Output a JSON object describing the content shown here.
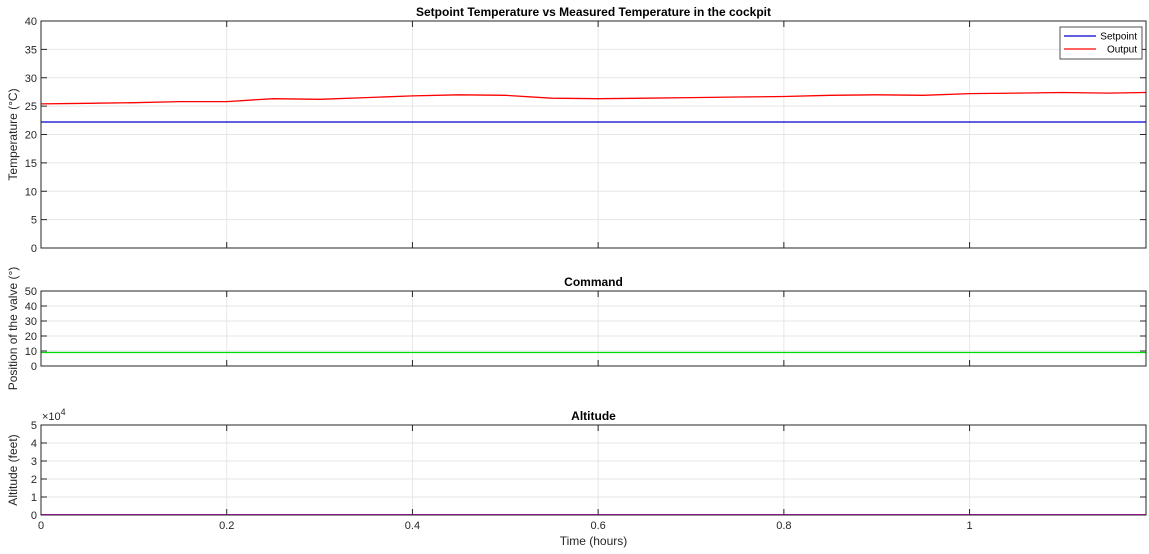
{
  "chart_data": [
    {
      "type": "line",
      "title": "Setpoint Temperature vs Measured Temperature in the cockpit",
      "xlabel": "",
      "ylabel": "Temperature (°C)",
      "xlim": [
        0,
        1.19
      ],
      "ylim": [
        0,
        40
      ],
      "x_ticks": [
        0,
        0.2,
        0.4,
        0.6,
        0.8,
        1
      ],
      "x_tick_labels": [
        "",
        "",
        "",
        "",
        "",
        ""
      ],
      "y_ticks": [
        0,
        5,
        10,
        15,
        20,
        25,
        30,
        35,
        40
      ],
      "y_tick_labels": [
        "0",
        "5",
        "10",
        "15",
        "20",
        "25",
        "30",
        "35",
        "40"
      ],
      "grid": true,
      "legend_position": "top-right",
      "series": [
        {
          "name": "Setpoint",
          "color": "#0000cc",
          "x": [
            0,
            1.19
          ],
          "y": [
            22.2,
            22.2
          ]
        },
        {
          "name": "Output",
          "color": "#ff0000",
          "x": [
            0,
            0.05,
            0.1,
            0.15,
            0.2,
            0.25,
            0.3,
            0.35,
            0.4,
            0.45,
            0.5,
            0.55,
            0.6,
            0.65,
            0.7,
            0.75,
            0.8,
            0.85,
            0.9,
            0.95,
            1.0,
            1.05,
            1.1,
            1.15,
            1.19
          ],
          "y": [
            25.4,
            25.5,
            25.6,
            25.8,
            25.8,
            26.3,
            26.2,
            26.5,
            26.8,
            27.0,
            26.9,
            26.4,
            26.3,
            26.4,
            26.5,
            26.6,
            26.7,
            26.9,
            27.0,
            26.9,
            27.2,
            27.3,
            27.4,
            27.3,
            27.4
          ]
        }
      ]
    },
    {
      "type": "line",
      "title": "Command",
      "xlabel": "",
      "ylabel": "Position of the valve (°)",
      "xlim": [
        0,
        1.19
      ],
      "ylim": [
        0,
        50
      ],
      "x_ticks": [
        0,
        0.2,
        0.4,
        0.6,
        0.8,
        1
      ],
      "x_tick_labels": [
        "",
        "",
        "",
        "",
        "",
        ""
      ],
      "y_ticks": [
        0,
        10,
        20,
        30,
        40,
        50
      ],
      "y_tick_labels": [
        "0",
        "10",
        "20",
        "30",
        "40",
        "50"
      ],
      "grid": true,
      "series": [
        {
          "name": "",
          "color": "#00dd00",
          "x": [
            0,
            1.19
          ],
          "y": [
            9,
            9
          ]
        }
      ]
    },
    {
      "type": "line",
      "title": "Altitude",
      "xlabel": "Time (hours)",
      "ylabel": "Altitude (feet)",
      "xlim": [
        0,
        1.19
      ],
      "ylim": [
        0,
        5
      ],
      "exponent_label": "×10^4",
      "exponent_base": "×10",
      "exponent_power": "4",
      "x_ticks": [
        0,
        0.2,
        0.4,
        0.6,
        0.8,
        1
      ],
      "x_tick_labels": [
        "0",
        "0.2",
        "0.4",
        "0.6",
        "0.8",
        "1"
      ],
      "y_ticks": [
        0,
        1,
        2,
        3,
        4,
        5
      ],
      "y_tick_labels": [
        "0",
        "1",
        "2",
        "3",
        "4",
        "5"
      ],
      "grid": true,
      "series": [
        {
          "name": "",
          "color": "#ee00ee",
          "x": [
            0,
            1.19
          ],
          "y": [
            0.02,
            0.02
          ]
        }
      ]
    }
  ]
}
